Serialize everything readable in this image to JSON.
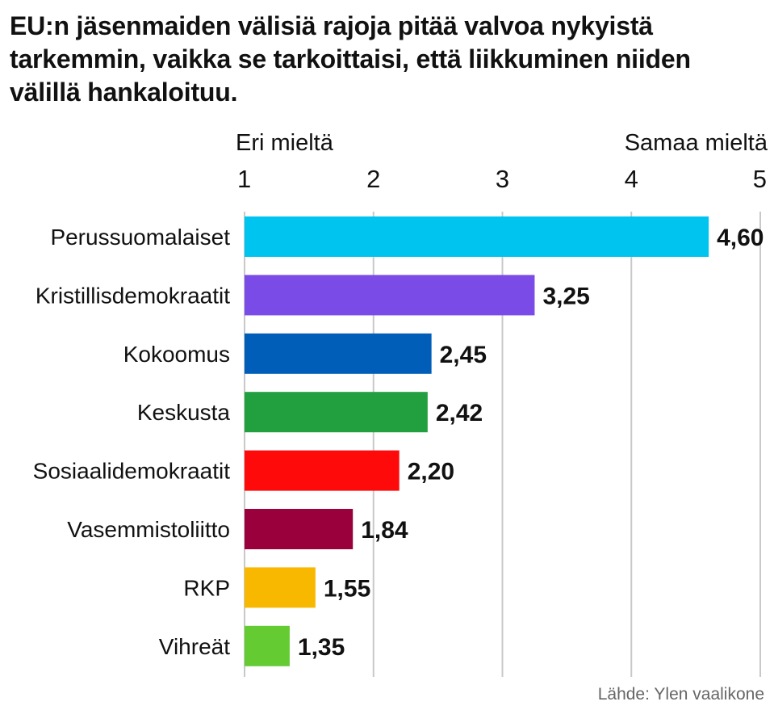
{
  "title": "EU:n jäsenmaiden välisiä rajoja pitää valvoa nykyistä tarkemmin, vaikka se tarkoittaisi, että liikkuminen niiden välillä hankaloituu.",
  "axis_left_label": "Eri mieltä",
  "axis_right_label": "Samaa mieltä",
  "source": "Lähde: Ylen vaalikone",
  "chart_data": {
    "type": "bar",
    "orientation": "horizontal",
    "title": "EU:n jäsenmaiden välisiä rajoja pitää valvoa nykyistä tarkemmin, vaikka se tarkoittaisi, että liikkuminen niiden välillä hankaloituu.",
    "xlim": [
      1,
      5
    ],
    "xticks": [
      1,
      2,
      3,
      4,
      5
    ],
    "xtick_position": "top",
    "grid": true,
    "categories": [
      "Perussuomalaiset",
      "Kristillisdemokraatit",
      "Kokoomus",
      "Keskusta",
      "Sosiaalidemokraatit",
      "Vasemmistoliitto",
      "RKP",
      "Vihreät"
    ],
    "values": [
      4.6,
      3.25,
      2.45,
      2.42,
      2.2,
      1.84,
      1.55,
      1.35
    ],
    "value_labels": [
      "4,60",
      "3,25",
      "2,45",
      "2,42",
      "2,20",
      "1,84",
      "1,55",
      "1,35"
    ],
    "colors": [
      "#00c4f0",
      "#7b4be8",
      "#005eb8",
      "#22a040",
      "#ff0a0a",
      "#99003c",
      "#f8b800",
      "#64cc32"
    ]
  }
}
